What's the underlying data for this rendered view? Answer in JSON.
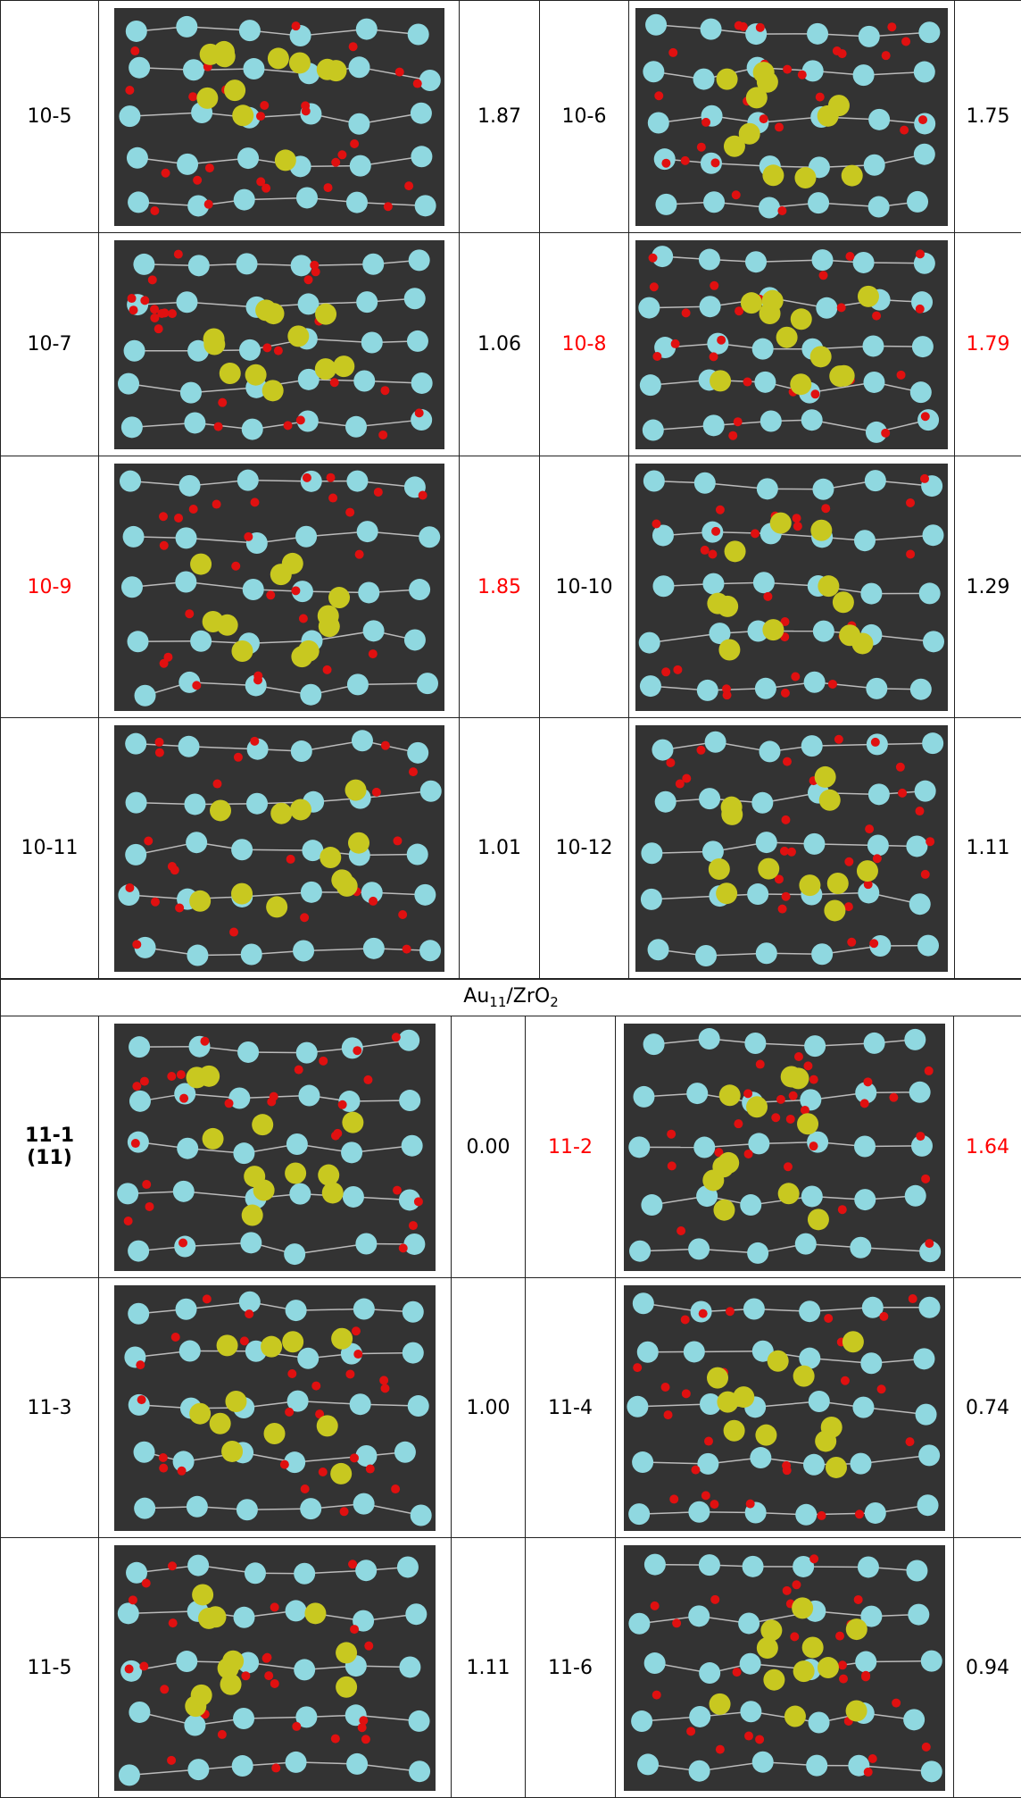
{
  "highlight_color": "#ff0000",
  "top_rows": [
    [
      {
        "label": "10-5",
        "energy": "1.87",
        "highlight": false
      },
      {
        "label": "10-6",
        "energy": "1.75",
        "highlight": false
      }
    ],
    [
      {
        "label": "10-7",
        "energy": "1.06",
        "highlight": false
      },
      {
        "label": "10-8",
        "energy": "1.79",
        "highlight": true
      }
    ],
    [
      {
        "label": "10-9",
        "energy": "1.85",
        "highlight": true
      },
      {
        "label": "10-10",
        "energy": "1.29",
        "highlight": false
      }
    ],
    [
      {
        "label": "10-11",
        "energy": "1.01",
        "highlight": false
      },
      {
        "label": "10-12",
        "energy": "1.11",
        "highlight": false
      }
    ]
  ],
  "section": {
    "title": {
      "base1": "Au",
      "sub1": "11",
      "base2": "/ZrO",
      "sub2": "2"
    },
    "rows": [
      [
        {
          "label": "11-1",
          "sublabel": "(11)",
          "bold": true,
          "energy": "0.00",
          "highlight": false
        },
        {
          "label": "11-2",
          "energy": "1.64",
          "highlight": true
        }
      ],
      [
        {
          "label": "11-3",
          "energy": "1.00",
          "highlight": false
        },
        {
          "label": "11-4",
          "energy": "0.74",
          "highlight": false
        }
      ],
      [
        {
          "label": "11-5",
          "energy": "1.11",
          "highlight": false
        },
        {
          "label": "11-6",
          "energy": "0.94",
          "highlight": false
        }
      ]
    ]
  }
}
